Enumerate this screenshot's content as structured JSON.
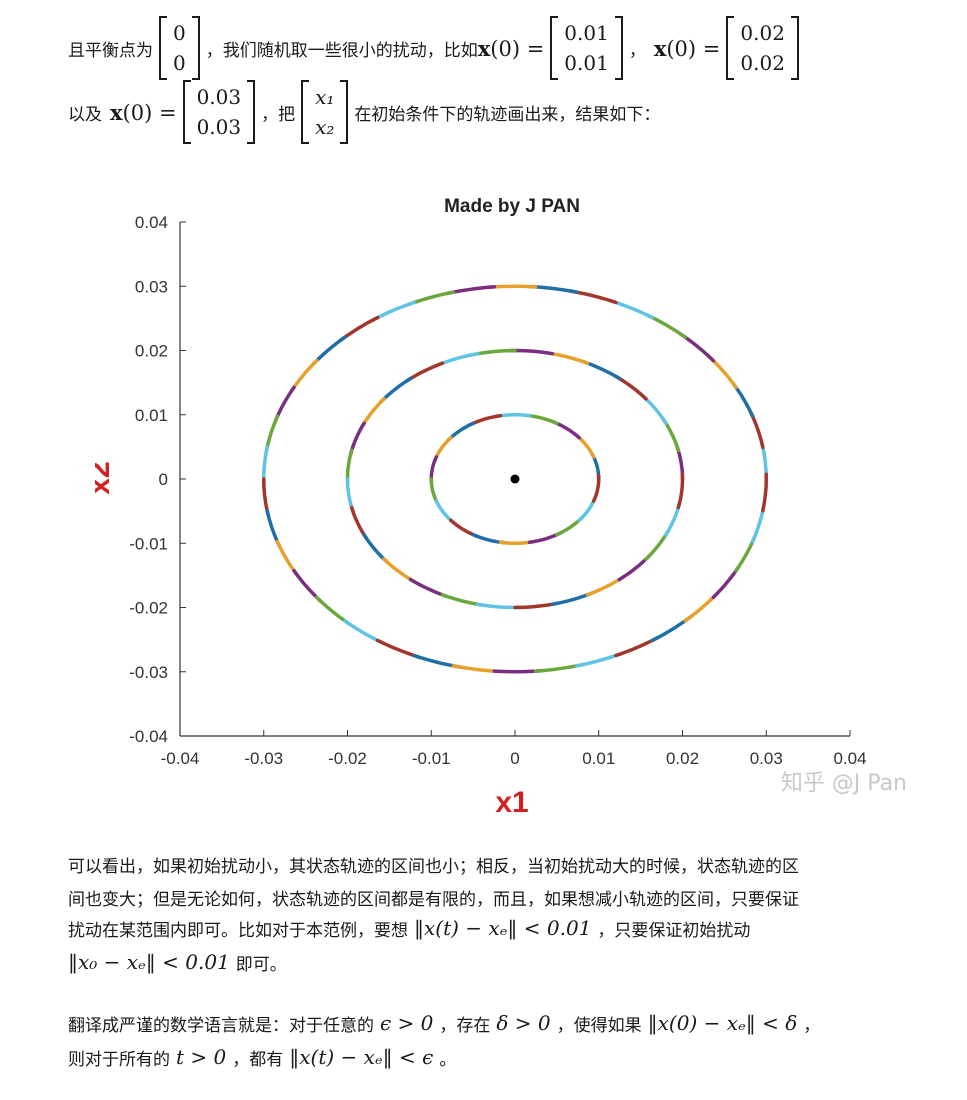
{
  "intro": {
    "t1": "且平衡点为",
    "eq_matrix": [
      "0",
      "0"
    ],
    "t2": "，我们随机取一些很小的扰动，比如",
    "x0": "x(0) =",
    "m1": [
      "0.01",
      "0.01"
    ],
    "sep1": "，",
    "m2": [
      "0.02",
      "0.02"
    ],
    "t3": "以及",
    "m3": [
      "0.03",
      "0.03"
    ],
    "t4": "，把",
    "xvec": [
      "x₁",
      "x₂"
    ],
    "t5": "在初始条件下的轨迹画出来，结果如下："
  },
  "chart_data": {
    "type": "line",
    "title": "Made by J PAN",
    "xlabel": "x1",
    "ylabel": "x2",
    "xlim": [
      -0.04,
      0.04
    ],
    "ylim": [
      -0.04,
      0.04
    ],
    "xticks": [
      "-0.04",
      "-0.03",
      "-0.02",
      "-0.01",
      "0",
      "0.01",
      "0.02",
      "0.03",
      "0.04"
    ],
    "yticks": [
      "0.04",
      "0.03",
      "0.02",
      "0.01",
      "0",
      "-0.01",
      "-0.02",
      "-0.03",
      "-0.04"
    ],
    "equilibrium": [
      0,
      0
    ],
    "series": [
      {
        "x0": [
          0.01,
          0.01
        ],
        "radius": 0.01
      },
      {
        "x0": [
          0.02,
          0.02
        ],
        "radius": 0.02
      },
      {
        "x0": [
          0.03,
          0.03
        ],
        "radius": 0.03
      }
    ],
    "colors": [
      "#1f6fa6",
      "#e8a02a",
      "#7a2e82",
      "#6aa83d",
      "#5fc3e4",
      "#a3362b"
    ],
    "watermark": "知乎 @J Pan"
  },
  "body": {
    "p1_l1": "可以看出，如果初始扰动小，其状态轨迹的区间也小；相反，当初始扰动大的时候，状态轨迹的区",
    "p1_l2": "间也变大；但是无论如何，状态轨迹的区间都是有限的，而且，如果想减小轨迹的区间，只要保证",
    "p1_l3a": "扰动在某范围内即可。比如对于本范例，要想",
    "p1_m1": "‖x(t) − xₑ‖ < 0.01",
    "p1_l3b": "，只要保证初始扰动",
    "p1_m2": "‖x₀ − xₑ‖ < 0.01",
    "p1_l4b": "即可。",
    "p2_a": "翻译成严谨的数学语言就是：对于任意的",
    "p2_m1": "ϵ > 0",
    "p2_b": "，存在",
    "p2_m2": "δ > 0",
    "p2_c": "，使得如果",
    "p2_m3": "‖x(0) − xₑ‖ < δ",
    "p2_d": "，",
    "p2_e": "则对于所有的",
    "p2_m4": "t > 0",
    "p2_f": "，都有",
    "p2_m5": "‖x(t) − xₑ‖ < ϵ",
    "p2_g": "。"
  }
}
